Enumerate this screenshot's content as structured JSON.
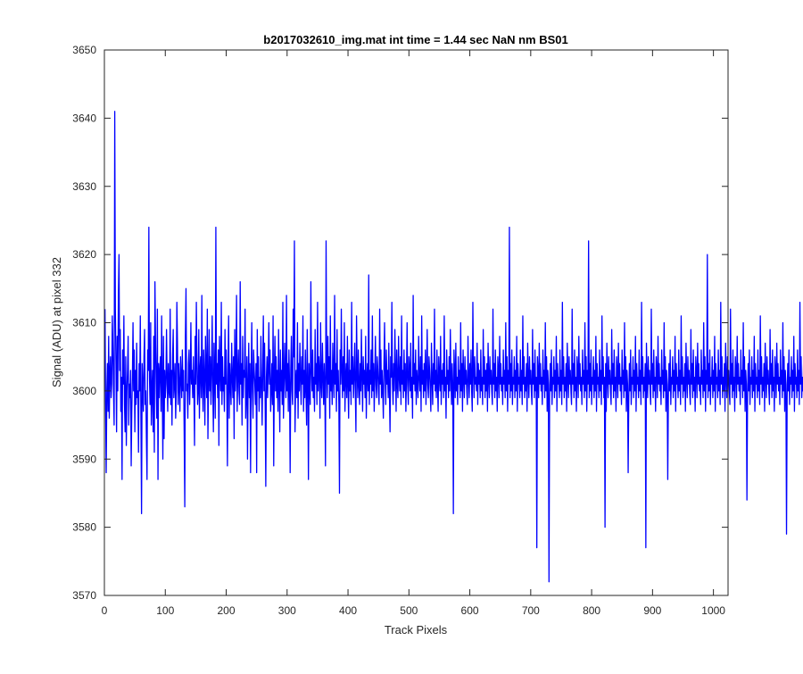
{
  "chart_data": {
    "type": "line",
    "title": "b2017032610_img.mat int time = 1.44 sec  NaN nm BS01",
    "xlabel": "Track Pixels",
    "ylabel": "Signal (ADU) at pixel 332",
    "xlim": [
      0,
      1024
    ],
    "ylim": [
      3570,
      3650
    ],
    "xticks": [
      0,
      100,
      200,
      300,
      400,
      500,
      600,
      700,
      800,
      900,
      1000
    ],
    "yticks": [
      3570,
      3580,
      3590,
      3600,
      3610,
      3620,
      3630,
      3640,
      3650
    ],
    "grid": false,
    "legend": "none",
    "series_color": "#0000FF",
    "series": [
      {
        "x_start": 1,
        "x_step": 1,
        "values": [
          3612,
          3598,
          3588,
          3600,
          3604,
          3597,
          3608,
          3596,
          3603,
          3605,
          3599,
          3601,
          3611,
          3606,
          3600,
          3595,
          3641,
          3612,
          3604,
          3594,
          3608,
          3600,
          3614,
          3620,
          3603,
          3609,
          3597,
          3602,
          3587,
          3606,
          3601,
          3611,
          3598,
          3594,
          3605,
          3592,
          3600,
          3603,
          3608,
          3595,
          3601,
          3599,
          3603,
          3589,
          3597,
          3602,
          3610,
          3600,
          3606,
          3594,
          3603,
          3598,
          3607,
          3599,
          3600,
          3591,
          3604,
          3600,
          3611,
          3596,
          3582,
          3604,
          3601,
          3597,
          3605,
          3609,
          3598,
          3600,
          3593,
          3587,
          3606,
          3603,
          3624,
          3602,
          3598,
          3610,
          3595,
          3600,
          3603,
          3594,
          3608,
          3591,
          3616,
          3607,
          3601,
          3596,
          3612,
          3587,
          3604,
          3599,
          3603,
          3605,
          3597,
          3611,
          3601,
          3590,
          3608,
          3593,
          3603,
          3599,
          3601,
          3609,
          3602,
          3597,
          3604,
          3600,
          3599,
          3612,
          3598,
          3603,
          3595,
          3605,
          3609,
          3599,
          3601,
          3604,
          3596,
          3600,
          3613,
          3607,
          3598,
          3604,
          3601,
          3597,
          3605,
          3602,
          3599,
          3606,
          3600,
          3603,
          3594,
          3583,
          3608,
          3615,
          3600,
          3601,
          3596,
          3604,
          3606,
          3598,
          3602,
          3610,
          3601,
          3603,
          3599,
          3605,
          3600,
          3592,
          3608,
          3601,
          3613,
          3604,
          3598,
          3600,
          3609,
          3596,
          3603,
          3605,
          3599,
          3614,
          3601,
          3597,
          3606,
          3602,
          3595,
          3608,
          3603,
          3599,
          3612,
          3593,
          3601,
          3609,
          3600,
          3605,
          3598,
          3603,
          3611,
          3600,
          3594,
          3607,
          3602,
          3596,
          3624,
          3601,
          3604,
          3599,
          3606,
          3592,
          3608,
          3603,
          3600,
          3613,
          3598,
          3605,
          3600,
          3602,
          3597,
          3609,
          3601,
          3606,
          3600,
          3589,
          3603,
          3611,
          3596,
          3604,
          3601,
          3598,
          3607,
          3602,
          3599,
          3605,
          3593,
          3609,
          3600,
          3603,
          3614,
          3597,
          3602,
          3606,
          3600,
          3598,
          3616,
          3601,
          3604,
          3595,
          3608,
          3599,
          3603,
          3602,
          3612,
          3596,
          3600,
          3605,
          3590,
          3601,
          3607,
          3599,
          3604,
          3588,
          3602,
          3610,
          3600,
          3596,
          3606,
          3603,
          3601,
          3598,
          3604,
          3588,
          3609,
          3600,
          3605,
          3597,
          3602,
          3599,
          3608,
          3601,
          3595,
          3603,
          3611,
          3600,
          3607,
          3598,
          3586,
          3602,
          3605,
          3599,
          3603,
          3610,
          3601,
          3606,
          3597,
          3600,
          3604,
          3598,
          3611,
          3589,
          3602,
          3608,
          3600,
          3605,
          3599,
          3603,
          3597,
          3609,
          3601,
          3594,
          3606,
          3600,
          3603,
          3598,
          3613,
          3596,
          3601,
          3607,
          3602,
          3599,
          3614,
          3600,
          3604,
          3597,
          3606,
          3601,
          3588,
          3603,
          3608,
          3600,
          3598,
          3612,
          3605,
          3622,
          3594,
          3601,
          3603,
          3599,
          3610,
          3596,
          3604,
          3600,
          3607,
          3602,
          3598,
          3605,
          3601,
          3611,
          3597,
          3603,
          3599,
          3606,
          3600,
          3595,
          3609,
          3602,
          3587,
          3604,
          3601,
          3598,
          3616,
          3603,
          3600,
          3606,
          3599,
          3602,
          3597,
          3609,
          3601,
          3604,
          3598,
          3613,
          3600,
          3605,
          3603,
          3596,
          3610,
          3601,
          3599,
          3607,
          3602,
          3598,
          3604,
          3600,
          3589,
          3622,
          3603,
          3599,
          3608,
          3601,
          3605,
          3596,
          3611,
          3600,
          3603,
          3598,
          3607,
          3602,
          3599,
          3614,
          3601,
          3604,
          3597,
          3609,
          3600,
          3603,
          3598,
          3585,
          3606,
          3601,
          3612,
          3603,
          3599,
          3605,
          3600,
          3610,
          3597,
          3602,
          3604,
          3599,
          3608,
          3601,
          3596,
          3606,
          3600,
          3603,
          3598,
          3613,
          3601,
          3605,
          3599,
          3602,
          3607,
          3600,
          3594,
          3611,
          3603,
          3599,
          3606,
          3601,
          3598,
          3604,
          3600,
          3609,
          3602,
          3597,
          3605,
          3601,
          3603,
          3599,
          3608,
          3596,
          3602,
          3604,
          3600,
          3617,
          3598,
          3603,
          3601,
          3606,
          3599,
          3611,
          3600,
          3604,
          3597,
          3602,
          3608,
          3601,
          3599,
          3605,
          3603,
          3600,
          3598,
          3612,
          3601,
          3606,
          3599,
          3603,
          3600,
          3596,
          3604,
          3610,
          3602,
          3598,
          3606,
          3601,
          3603,
          3599,
          3607,
          3600,
          3594,
          3605,
          3602,
          3613,
          3601,
          3598,
          3604,
          3600,
          3609,
          3603,
          3597,
          3606,
          3601,
          3599,
          3608,
          3602,
          3600,
          3605,
          3598,
          3611,
          3601,
          3603,
          3599,
          3606,
          3600,
          3604,
          3597,
          3602,
          3610,
          3601,
          3598,
          3605,
          3603,
          3600,
          3607,
          3599,
          3602,
          3596,
          3614,
          3601,
          3604,
          3600,
          3606,
          3598,
          3603,
          3601,
          3599,
          3608,
          3602,
          3600,
          3605,
          3597,
          3611,
          3601,
          3603,
          3599,
          3604,
          3600,
          3606,
          3598,
          3602,
          3609,
          3601,
          3599,
          3605,
          3603,
          3600,
          3597,
          3607,
          3602,
          3598,
          3604,
          3601,
          3612,
          3600,
          3603,
          3599,
          3606,
          3601,
          3597,
          3605,
          3602,
          3600,
          3608,
          3598,
          3603,
          3601,
          3604,
          3599,
          3611,
          3600,
          3602,
          3596,
          3606,
          3601,
          3603,
          3599,
          3605,
          3600,
          3609,
          3602,
          3598,
          3604,
          3601,
          3582,
          3606,
          3603,
          3599,
          3607,
          3600,
          3602,
          3598,
          3605,
          3601,
          3603,
          3599,
          3610,
          3600,
          3604,
          3597,
          3606,
          3602,
          3599,
          3605,
          3601,
          3603,
          3600,
          3598,
          3608,
          3602,
          3599,
          3604,
          3601,
          3606,
          3600,
          3597,
          3613,
          3603,
          3599,
          3605,
          3601,
          3602,
          3600,
          3607,
          3598,
          3604,
          3601,
          3603,
          3599,
          3606,
          3600,
          3602,
          3598,
          3609,
          3601,
          3605,
          3599,
          3603,
          3600,
          3604,
          3597,
          3607,
          3602,
          3599,
          3605,
          3601,
          3603,
          3600,
          3598,
          3612,
          3601,
          3604,
          3599,
          3606,
          3600,
          3602,
          3597,
          3605,
          3603,
          3599,
          3608,
          3601,
          3604,
          3600,
          3602,
          3598,
          3606,
          3601,
          3603,
          3599,
          3610,
          3600,
          3605,
          3597,
          3603,
          3601,
          3624,
          3599,
          3604,
          3600,
          3606,
          3598,
          3602,
          3601,
          3605,
          3599,
          3603,
          3600,
          3608,
          3597,
          3604,
          3601,
          3602,
          3599,
          3606,
          3600,
          3603,
          3598,
          3611,
          3601,
          3605,
          3599,
          3602,
          3600,
          3604,
          3597,
          3607,
          3602,
          3599,
          3605,
          3601,
          3603,
          3600,
          3598,
          3609,
          3601,
          3604,
          3599,
          3606,
          3600,
          3602,
          3577,
          3605,
          3603,
          3599,
          3607,
          3601,
          3604,
          3600,
          3602,
          3598,
          3606,
          3601,
          3603,
          3599,
          3610,
          3600,
          3605,
          3597,
          3603,
          3601,
          3572,
          3599,
          3604,
          3600,
          3606,
          3598,
          3602,
          3601,
          3605,
          3599,
          3603,
          3600,
          3608,
          3597,
          3604,
          3601,
          3602,
          3599,
          3606,
          3600,
          3603,
          3598,
          3613,
          3601,
          3605,
          3599,
          3602,
          3600,
          3604,
          3597,
          3607,
          3602,
          3599,
          3605,
          3601,
          3603,
          3600,
          3598,
          3612,
          3601,
          3604,
          3599,
          3606,
          3600,
          3602,
          3597,
          3605,
          3603,
          3599,
          3608,
          3601,
          3604,
          3600,
          3602,
          3598,
          3606,
          3601,
          3603,
          3599,
          3610,
          3600,
          3605,
          3597,
          3603,
          3601,
          3622,
          3599,
          3604,
          3600,
          3606,
          3598,
          3602,
          3601,
          3605,
          3599,
          3603,
          3600,
          3608,
          3597,
          3604,
          3601,
          3602,
          3599,
          3606,
          3600,
          3603,
          3598,
          3611,
          3601,
          3605,
          3599,
          3602,
          3580,
          3604,
          3597,
          3607,
          3602,
          3599,
          3605,
          3601,
          3603,
          3600,
          3598,
          3609,
          3601,
          3604,
          3599,
          3606,
          3600,
          3602,
          3597,
          3605,
          3603,
          3599,
          3607,
          3601,
          3604,
          3600,
          3602,
          3598,
          3606,
          3601,
          3603,
          3599,
          3610,
          3600,
          3605,
          3597,
          3603,
          3601,
          3588,
          3599,
          3604,
          3600,
          3606,
          3598,
          3602,
          3601,
          3605,
          3599,
          3603,
          3600,
          3608,
          3597,
          3604,
          3601,
          3602,
          3599,
          3606,
          3600,
          3603,
          3598,
          3613,
          3601,
          3605,
          3599,
          3602,
          3600,
          3604,
          3577,
          3607,
          3602,
          3599,
          3605,
          3601,
          3603,
          3600,
          3598,
          3612,
          3601,
          3604,
          3599,
          3606,
          3600,
          3602,
          3597,
          3605,
          3603,
          3599,
          3608,
          3601,
          3604,
          3600,
          3602,
          3598,
          3606,
          3601,
          3603,
          3599,
          3610,
          3600,
          3605,
          3597,
          3603,
          3601,
          3587,
          3599,
          3604,
          3600,
          3606,
          3598,
          3602,
          3601,
          3605,
          3599,
          3603,
          3600,
          3608,
          3597,
          3604,
          3601,
          3602,
          3599,
          3606,
          3600,
          3603,
          3598,
          3611,
          3601,
          3605,
          3599,
          3602,
          3600,
          3604,
          3597,
          3607,
          3602,
          3599,
          3605,
          3601,
          3603,
          3600,
          3598,
          3609,
          3601,
          3604,
          3599,
          3606,
          3600,
          3602,
          3597,
          3605,
          3603,
          3599,
          3607,
          3601,
          3604,
          3600,
          3602,
          3598,
          3606,
          3601,
          3603,
          3599,
          3610,
          3600,
          3605,
          3597,
          3603,
          3601,
          3620,
          3599,
          3604,
          3600,
          3606,
          3598,
          3602,
          3601,
          3605,
          3599,
          3603,
          3600,
          3608,
          3597,
          3604,
          3601,
          3602,
          3599,
          3606,
          3600,
          3603,
          3598,
          3613,
          3601,
          3605,
          3599,
          3602,
          3600,
          3604,
          3597,
          3607,
          3602,
          3599,
          3605,
          3601,
          3603,
          3600,
          3598,
          3612,
          3601,
          3604,
          3599,
          3606,
          3600,
          3602,
          3597,
          3605,
          3603,
          3599,
          3608,
          3601,
          3604,
          3600,
          3602,
          3598,
          3606,
          3601,
          3603,
          3599,
          3610,
          3600,
          3605,
          3597,
          3603,
          3601,
          3584,
          3599,
          3604,
          3600,
          3606,
          3598,
          3602,
          3601,
          3605,
          3599,
          3603,
          3600,
          3608,
          3597,
          3604,
          3601,
          3602,
          3599,
          3606,
          3600,
          3603,
          3598,
          3611,
          3601,
          3605,
          3599,
          3602,
          3600,
          3604,
          3597,
          3607,
          3602,
          3599,
          3605,
          3601,
          3603,
          3600,
          3598,
          3609,
          3601,
          3604,
          3599,
          3606,
          3600,
          3602,
          3597,
          3605,
          3603,
          3599,
          3607,
          3601,
          3604,
          3600,
          3602,
          3598,
          3606,
          3601,
          3603,
          3599,
          3610,
          3600,
          3605,
          3597,
          3603,
          3601,
          3579,
          3599,
          3604,
          3600,
          3606,
          3598,
          3602,
          3601,
          3605,
          3599,
          3603,
          3600,
          3608,
          3597,
          3604,
          3601,
          3602,
          3599,
          3606,
          3600,
          3603,
          3598,
          3613,
          3601,
          3605,
          3599,
          3602,
          3600,
          3604,
          3597,
          3607,
          3602,
          3599,
          3605,
          3601,
          3603,
          3600,
          3598,
          3612,
          3601,
          3604,
          3599,
          3606,
          3600,
          3602,
          3597,
          3605,
          3603,
          3599,
          3608,
          3601,
          3604,
          3600,
          3602,
          3598,
          3606,
          3601,
          3603,
          3599,
          3610,
          3600,
          3605,
          3597,
          3603,
          3601,
          3590,
          3599,
          3604,
          3600,
          3609
        ]
      }
    ]
  }
}
